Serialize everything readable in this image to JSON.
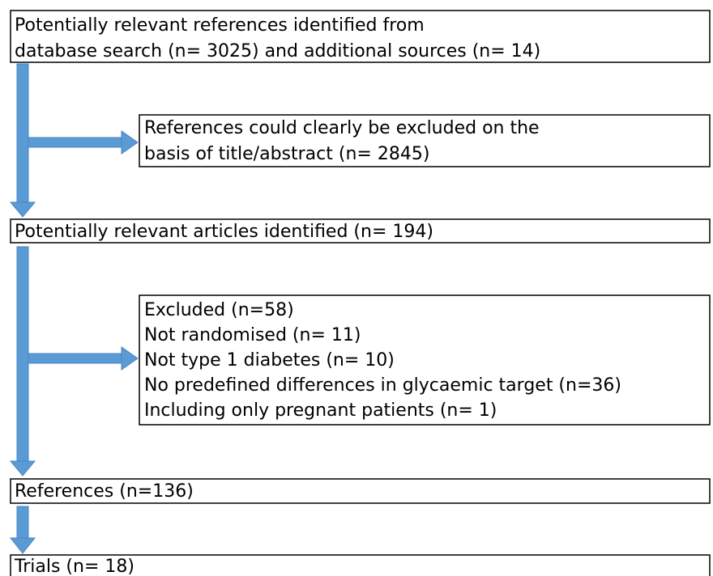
{
  "nodes": [
    {
      "lines": [
        "Potentially relevant references identified from",
        "database search (n= 3025) and additional sources (n= 14)"
      ]
    },
    {
      "lines": [
        "References could clearly be excluded on the",
        "basis of title/abstract (n= 2845)"
      ]
    },
    {
      "lines": [
        "Potentially relevant articles identified (n= 194)"
      ]
    },
    {
      "lines": [
        "Excluded (n=58)",
        "Not randomised (n= 11)",
        "Not type 1 diabetes (n= 10)",
        "No predefined differences in glycaemic target (n=36)",
        "Including only pregnant patients (n= 1)"
      ]
    },
    {
      "lines": [
        "References (n=136)"
      ]
    },
    {
      "lines": [
        "Trials (n= 18)"
      ]
    }
  ]
}
